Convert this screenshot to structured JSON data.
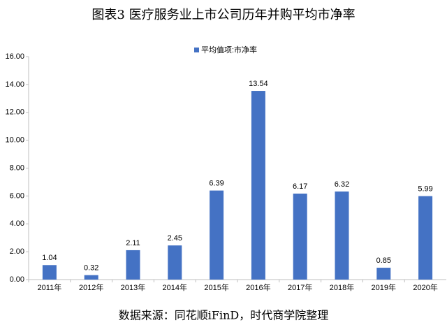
{
  "chart_data": {
    "type": "bar",
    "title": "图表3 医疗服务业上市公司历年并购平均市净率",
    "source": "数据来源：同花顺iFinD，时代商学院整理",
    "categories": [
      "2011年",
      "2012年",
      "2013年",
      "2014年",
      "2015年",
      "2016年",
      "2017年",
      "2018年",
      "2019年",
      "2020年"
    ],
    "series": [
      {
        "name": "平均值项:市净率",
        "color": "#4472c4",
        "values": [
          1.04,
          0.32,
          2.11,
          2.45,
          6.39,
          13.54,
          6.17,
          6.32,
          0.85,
          5.99
        ]
      }
    ],
    "ylim": [
      0,
      16
    ],
    "yticks": [
      {
        "value": 0,
        "label": "0.00"
      },
      {
        "value": 2,
        "label": "2.00"
      },
      {
        "value": 4,
        "label": "4.00"
      },
      {
        "value": 6,
        "label": "6.00"
      },
      {
        "value": 8,
        "label": "8.00"
      },
      {
        "value": 10,
        "label": "10.00"
      },
      {
        "value": 12,
        "label": "12.00"
      },
      {
        "value": 14,
        "label": "14.00"
      },
      {
        "value": 16,
        "label": "16.00"
      }
    ],
    "grid": false,
    "legend": "top"
  }
}
